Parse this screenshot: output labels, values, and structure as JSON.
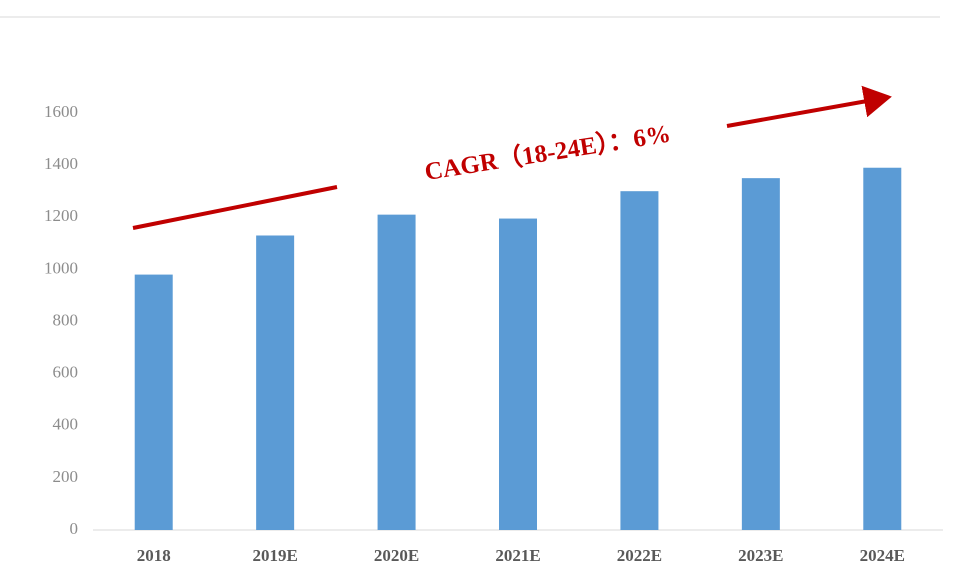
{
  "chart_data": {
    "type": "bar",
    "categories": [
      "2018",
      "2019E",
      "2020E",
      "2021E",
      "2022E",
      "2023E",
      "2024E"
    ],
    "values": [
      980,
      1130,
      1210,
      1195,
      1300,
      1350,
      1390
    ],
    "color": "#5b9bd5",
    "ylim": [
      0,
      1600
    ],
    "yticks": [
      0,
      200,
      400,
      600,
      800,
      1000,
      1200,
      1400,
      1600
    ],
    "grid": false,
    "annotation": "CAGR（18-24E）：6%"
  }
}
